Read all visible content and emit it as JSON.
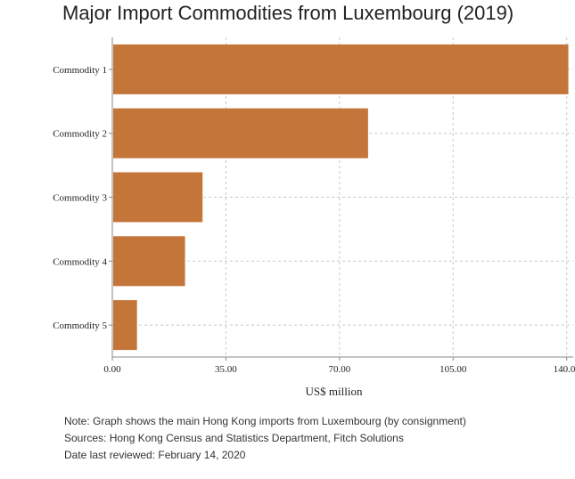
{
  "chart_data": {
    "type": "bar",
    "orientation": "horizontal",
    "title": "Major Import Commodities from Luxembourg (2019)",
    "categories": [
      "Commodity 1",
      "Commodity 2",
      "Commodity 3",
      "Commodity 4",
      "Commodity 5"
    ],
    "values": [
      140.5,
      78.8,
      27.8,
      22.4,
      7.6
    ],
    "xlabel": "US$ million",
    "ylabel": "",
    "xlim": [
      0,
      142
    ],
    "xticks": [
      0,
      35,
      70,
      105,
      140
    ],
    "xtick_labels": [
      "0.00",
      "35.00",
      "70.00",
      "105.00",
      "140.00"
    ],
    "grid": true,
    "bar_color": "#c4763a"
  },
  "notes": [
    "Note: Graph shows the main Hong Kong imports from Luxembourg (by consignment)",
    "Sources: Hong Kong Census and Statistics Department, Fitch Solutions",
    "Date last reviewed: February 14, 2020"
  ]
}
